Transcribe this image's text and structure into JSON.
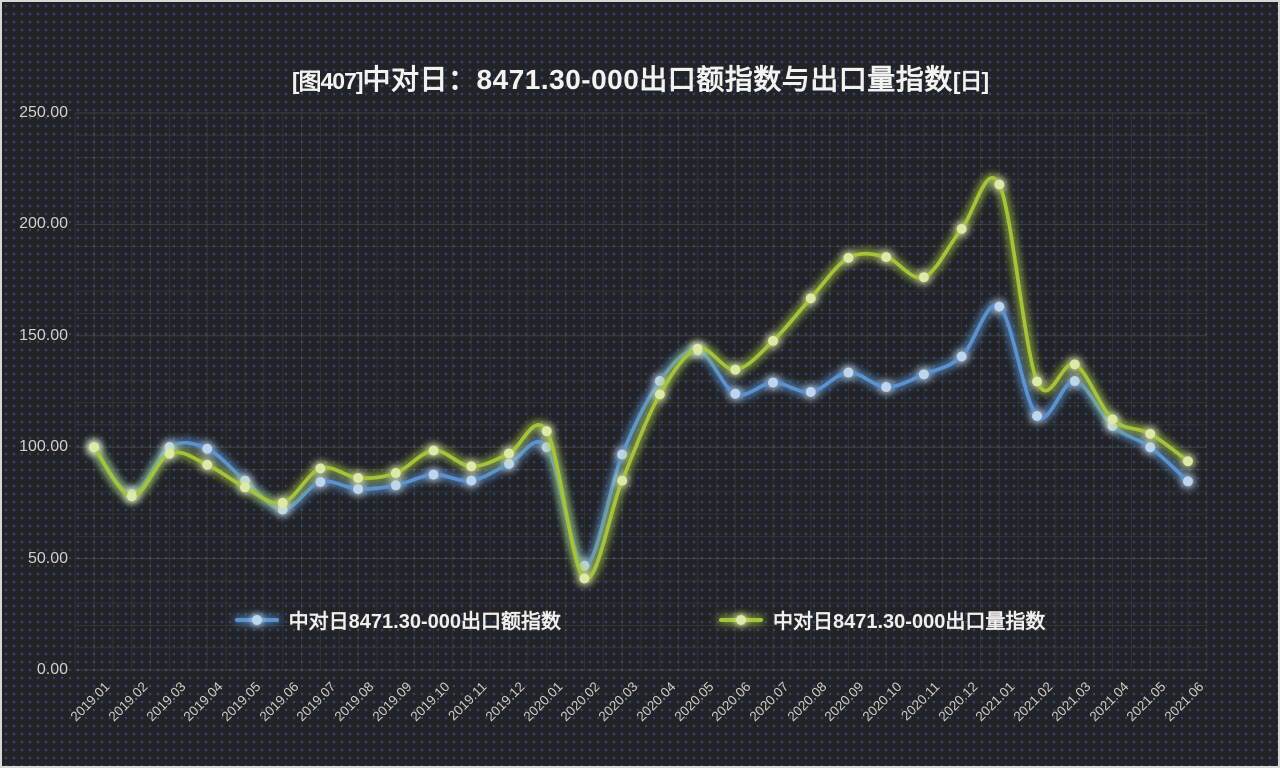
{
  "title": {
    "prefix": "[图407]",
    "main": "中对日：8471.30-000出口额指数与出口量指数",
    "suffix": "[日]"
  },
  "chart_data": {
    "type": "line",
    "title": "[图407]中对日：8471.30-000出口额指数与出口量指数[日]",
    "x_categories": [
      "2019.01",
      "2019.02",
      "2019.03",
      "2019.04",
      "2019.05",
      "2019.06",
      "2019.07",
      "2019.08",
      "2019.09",
      "2019.10",
      "2019.11",
      "2019.12",
      "2020.01",
      "2020.02",
      "2020.03",
      "2020.04",
      "2020.05",
      "2020.06",
      "2020.07",
      "2020.08",
      "2020.09",
      "2020.10",
      "2020.11",
      "2020.12",
      "2021.01",
      "2021.02",
      "2021.03",
      "2021.04",
      "2021.05",
      "2021.06"
    ],
    "series": [
      {
        "name": "中对日8471.30-000出口额指数",
        "color": "#5b93cf",
        "marker_color": "#bdd6ee",
        "values": [
          100.0,
          79.0,
          100.1,
          99.3,
          85.0,
          72.0,
          84.4,
          81.2,
          82.9,
          87.7,
          85.0,
          92.5,
          100.0,
          46.8,
          96.7,
          129.7,
          143.5,
          124.0,
          129.0,
          124.8,
          133.5,
          127.0,
          132.7,
          140.7,
          163.1,
          114.0,
          129.7,
          109.5,
          100.0,
          84.7
        ]
      },
      {
        "name": "中对日8471.30-000出口量指数",
        "color": "#a6c33e",
        "marker_color": "#dde9a8",
        "values": [
          100.0,
          78.0,
          97.1,
          92.1,
          82.0,
          75.0,
          90.5,
          86.2,
          88.4,
          98.5,
          91.4,
          97.2,
          107.2,
          41.1,
          85.0,
          123.7,
          144.2,
          134.8,
          147.7,
          166.8,
          185.0,
          185.3,
          176.3,
          198.0,
          217.9,
          129.5,
          137.2,
          112.5,
          106.0,
          93.7
        ]
      }
    ],
    "y_ticks": [
      "0.00",
      "50.00",
      "100.00",
      "150.00",
      "200.00",
      "250.00"
    ],
    "y_tick_values": [
      0,
      50,
      100,
      150,
      200,
      250
    ],
    "ylim": [
      0,
      250
    ],
    "grid": true,
    "grid_minor_step_y": 10,
    "legend_position": "bottom-inside",
    "colors": {
      "background": "#232327",
      "dot_pattern": "#2d4a76",
      "grid_minor": "rgba(190,190,180,0.10)",
      "grid_major": "rgba(200,200,190,0.17)",
      "tick_text": "#d2d0c8",
      "title_text": "#f2f2f0"
    }
  }
}
